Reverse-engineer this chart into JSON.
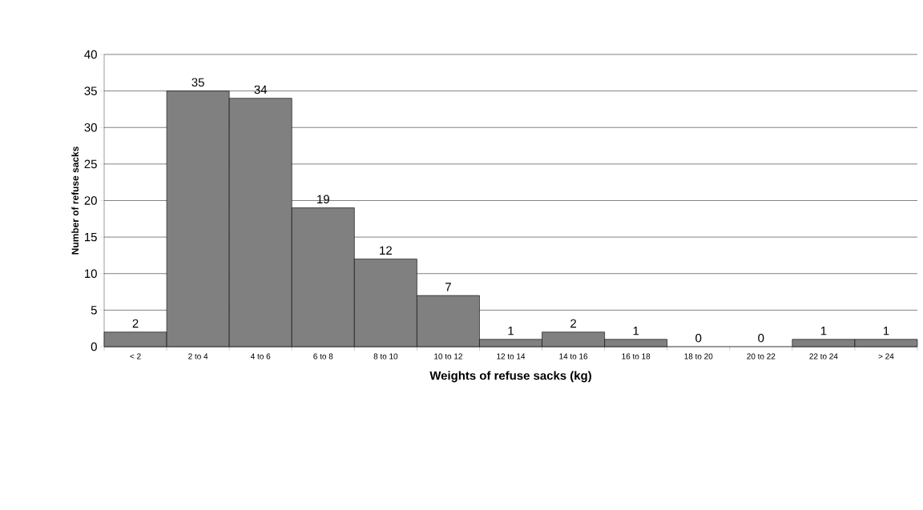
{
  "chart_data": {
    "type": "bar",
    "xlabel": "Weights of refuse sacks (kg)",
    "ylabel": "Number of refuse sacks",
    "categories": [
      "< 2",
      "2 to 4",
      "4 to 6",
      "6 to 8",
      "8 to 10",
      "10 to 12",
      "12 to 14",
      "14 to 16",
      "16 to 18",
      "18 to 20",
      "20 to 22",
      "22 to 24",
      "> 24"
    ],
    "values": [
      2,
      35,
      34,
      19,
      12,
      7,
      1,
      2,
      1,
      0,
      0,
      1,
      1
    ],
    "color": "#808080",
    "ylim": [
      0,
      40
    ],
    "yticks": [
      0,
      5,
      10,
      15,
      20,
      25,
      30,
      35,
      40
    ],
    "grid": "y",
    "data_labels": true
  }
}
